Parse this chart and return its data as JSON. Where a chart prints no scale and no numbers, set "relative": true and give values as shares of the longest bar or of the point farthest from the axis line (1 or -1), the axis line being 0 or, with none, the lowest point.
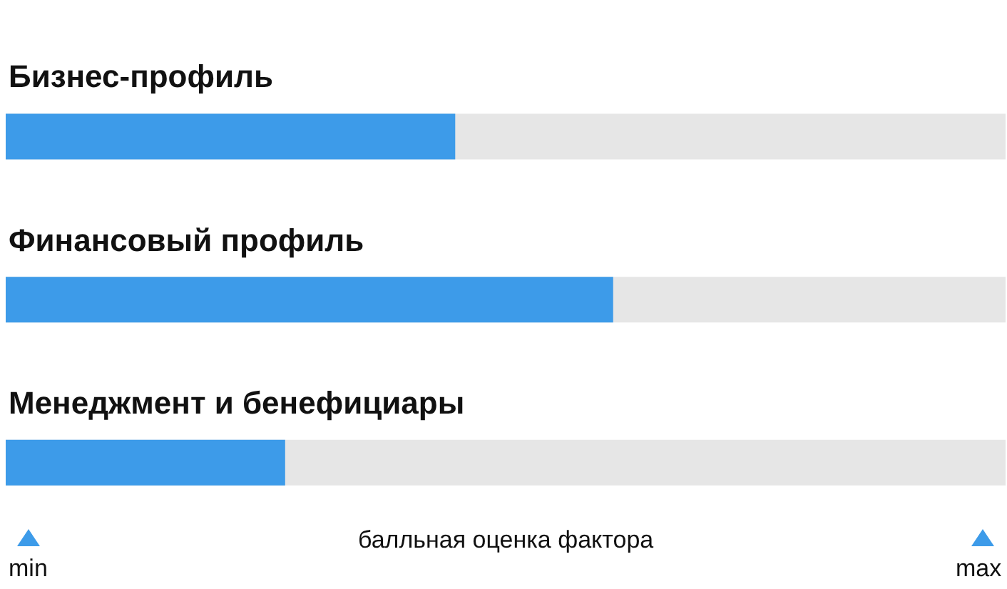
{
  "chart_data": {
    "type": "bar",
    "orientation": "horizontal",
    "relative": true,
    "categories": [
      "Бизнес-профиль",
      "Финансовый профиль",
      "Менеджмент и бенефициары"
    ],
    "series": [
      {
        "color": "#3d9be9",
        "values": [
          0.74,
          1,
          0.46
        ]
      }
    ],
    "xlabel": "балльная оценка фактора",
    "annotations": [
      "min",
      "max"
    ]
  }
}
